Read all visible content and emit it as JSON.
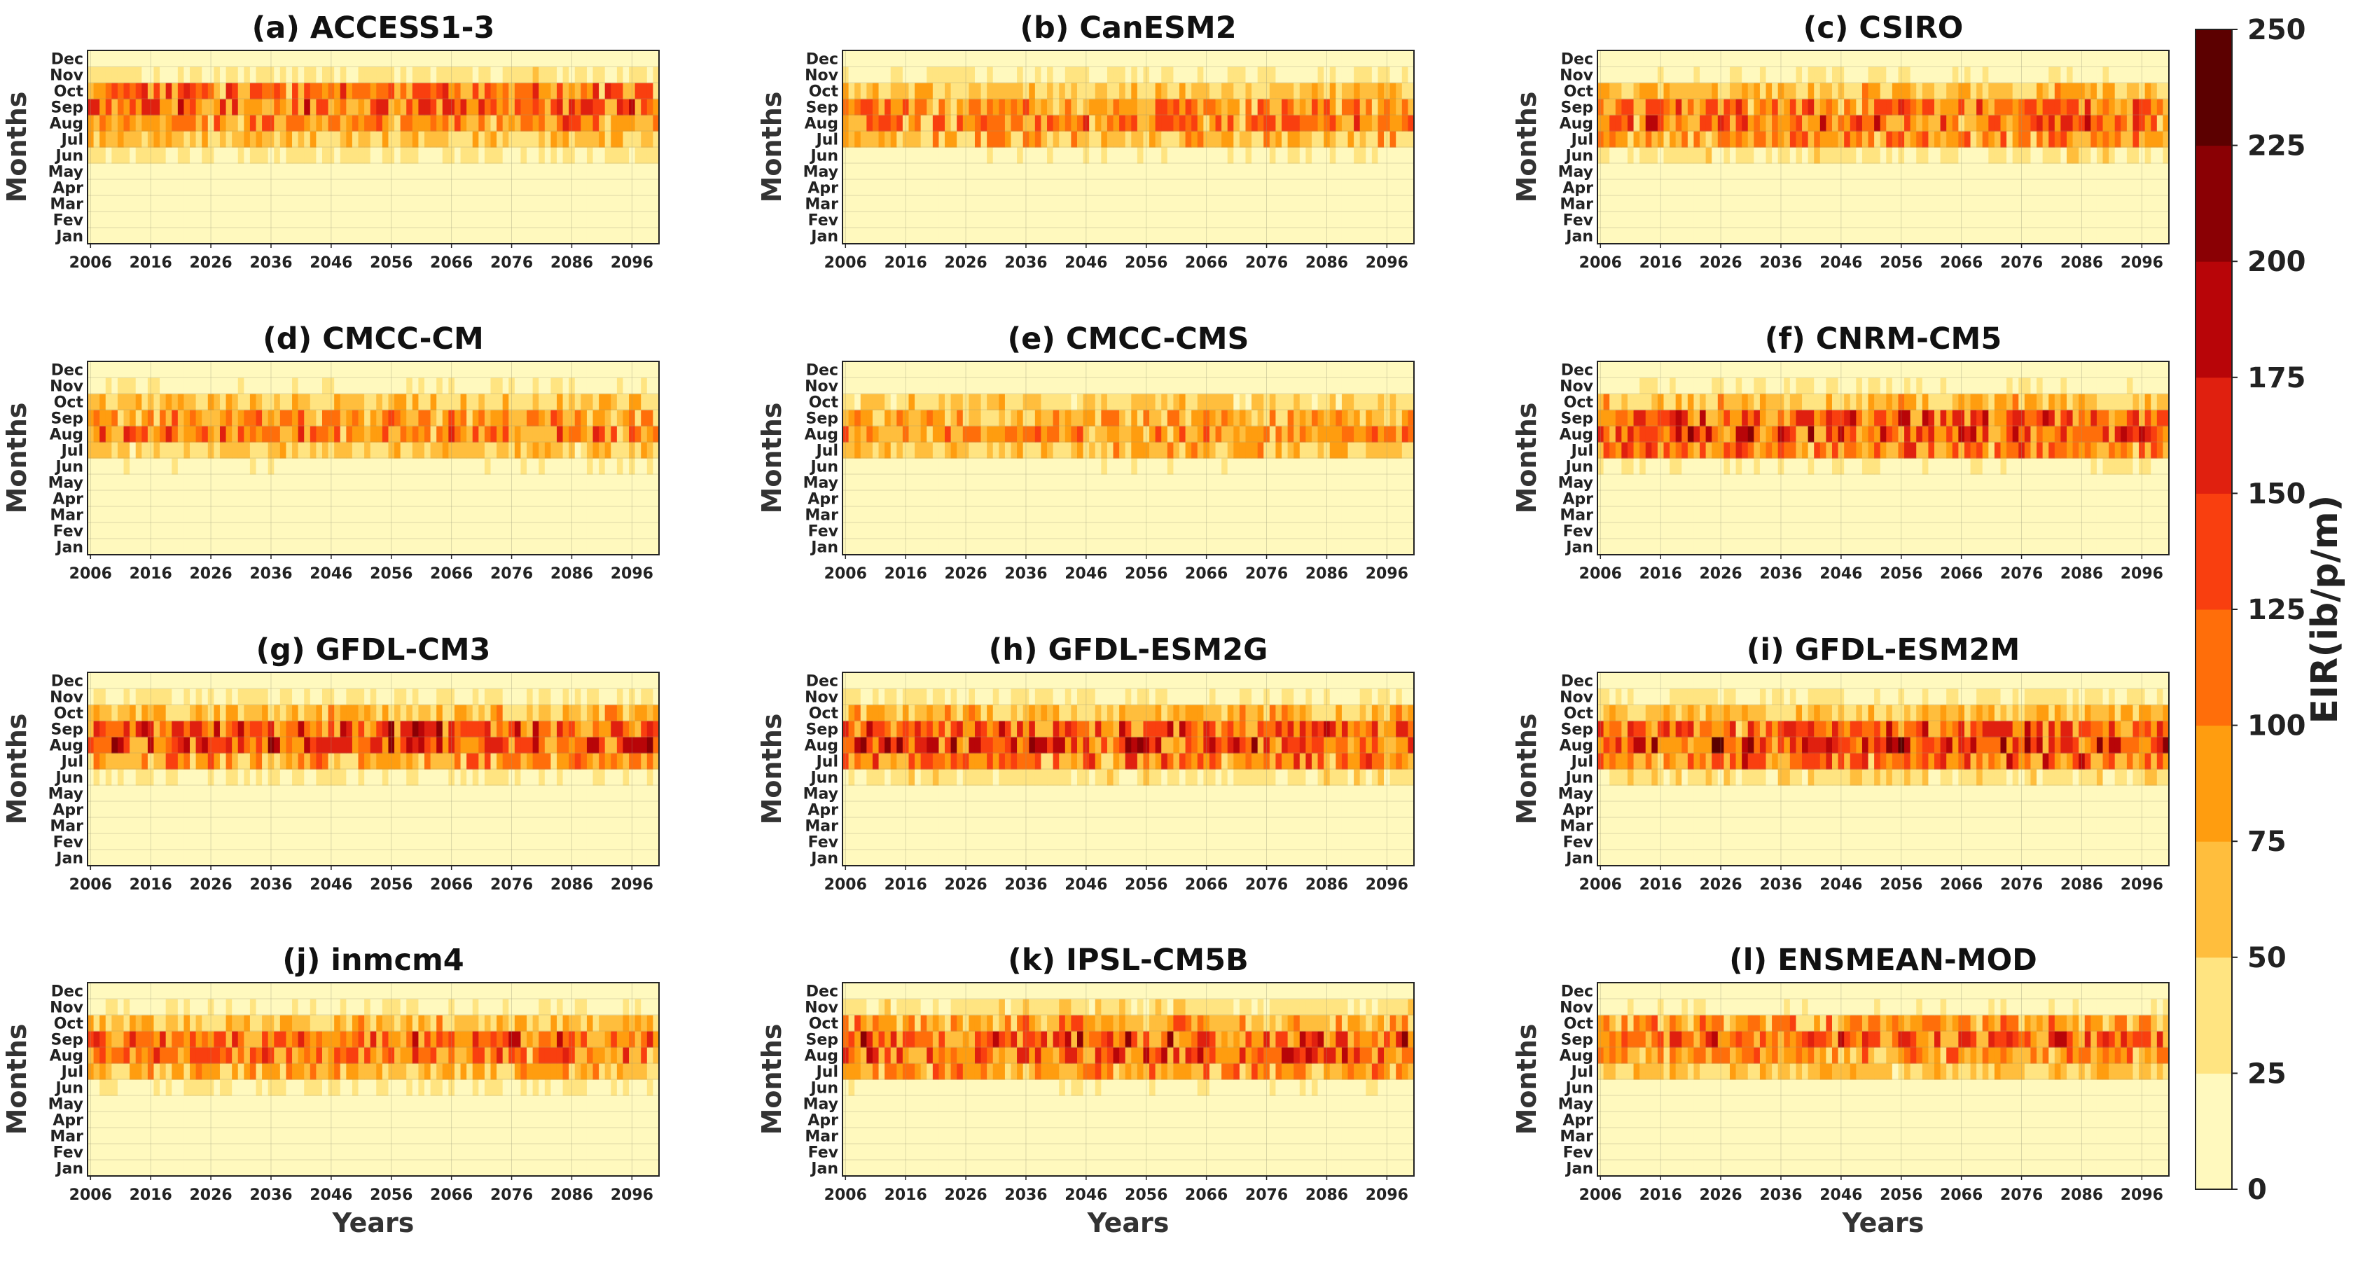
{
  "chart_data": {
    "type": "heatmap",
    "x_start": 2006,
    "x_end": 2100,
    "x_ticks": [
      "2006",
      "2016",
      "2026",
      "2036",
      "2046",
      "2056",
      "2066",
      "2076",
      "2086",
      "2096"
    ],
    "months": [
      "Jan",
      "Fev",
      "Mar",
      "Apr",
      "May",
      "Jun",
      "Jul",
      "Aug",
      "Sep",
      "Oct",
      "Nov",
      "Dec"
    ],
    "xlabel": "Years",
    "ylabel": "Months",
    "colorbar": {
      "label": "EIR(ib/p/m)",
      "ticks": [
        "0",
        "25",
        "50",
        "75",
        "100",
        "125",
        "150",
        "175",
        "200",
        "225",
        "250"
      ],
      "bins": [
        0,
        25,
        50,
        75,
        100,
        125,
        150,
        175,
        200,
        225,
        250
      ],
      "colors": [
        "#FFF9BE",
        "#FFE481",
        "#FFBE3D",
        "#FF9D0F",
        "#FF6E0A",
        "#F93F0F",
        "#E0200F",
        "#B80508",
        "#8A0004",
        "#5C0000"
      ]
    },
    "panels": [
      {
        "title": "(a) ACCESS1-3",
        "typical_eir_by_month": [
          5,
          5,
          5,
          5,
          5,
          28,
          55,
          92,
          108,
          100,
          30,
          8
        ]
      },
      {
        "title": "(b) CanESM2",
        "typical_eir_by_month": [
          5,
          5,
          5,
          5,
          5,
          18,
          70,
          96,
          88,
          55,
          22,
          7
        ]
      },
      {
        "title": "(c) CSIRO",
        "typical_eir_by_month": [
          5,
          5,
          5,
          5,
          5,
          30,
          88,
          108,
          98,
          60,
          20,
          6
        ]
      },
      {
        "title": "(d) CMCC-CM",
        "typical_eir_by_month": [
          5,
          5,
          5,
          5,
          5,
          18,
          52,
          102,
          84,
          55,
          20,
          6
        ]
      },
      {
        "title": "(e) CMCC-CMS",
        "typical_eir_by_month": [
          5,
          5,
          5,
          5,
          5,
          16,
          62,
          90,
          72,
          45,
          14,
          5
        ]
      },
      {
        "title": "(f) CNRM-CM5",
        "typical_eir_by_month": [
          5,
          5,
          5,
          5,
          5,
          20,
          98,
          128,
          110,
          62,
          20,
          6
        ]
      },
      {
        "title": "(g) GFDL-CM3",
        "typical_eir_by_month": [
          5,
          5,
          5,
          5,
          6,
          24,
          78,
          128,
          118,
          62,
          24,
          6
        ]
      },
      {
        "title": "(h) GFDL-ESM2G",
        "typical_eir_by_month": [
          5,
          5,
          5,
          5,
          6,
          30,
          98,
          132,
          110,
          62,
          24,
          6
        ]
      },
      {
        "title": "(i) GFDL-ESM2M",
        "typical_eir_by_month": [
          5,
          5,
          5,
          5,
          6,
          36,
          104,
          138,
          110,
          58,
          26,
          6
        ]
      },
      {
        "title": "(j) inmcm4",
        "typical_eir_by_month": [
          5,
          5,
          5,
          5,
          5,
          26,
          68,
          98,
          104,
          60,
          20,
          6
        ]
      },
      {
        "title": "(k) IPSL-CM5B",
        "typical_eir_by_month": [
          5,
          5,
          5,
          5,
          5,
          18,
          85,
          112,
          118,
          80,
          36,
          14
        ]
      },
      {
        "title": "(l) ENSMEAN-MOD",
        "typical_eir_by_month": [
          5,
          5,
          5,
          5,
          5,
          14,
          52,
          84,
          112,
          82,
          18,
          6
        ]
      }
    ]
  }
}
